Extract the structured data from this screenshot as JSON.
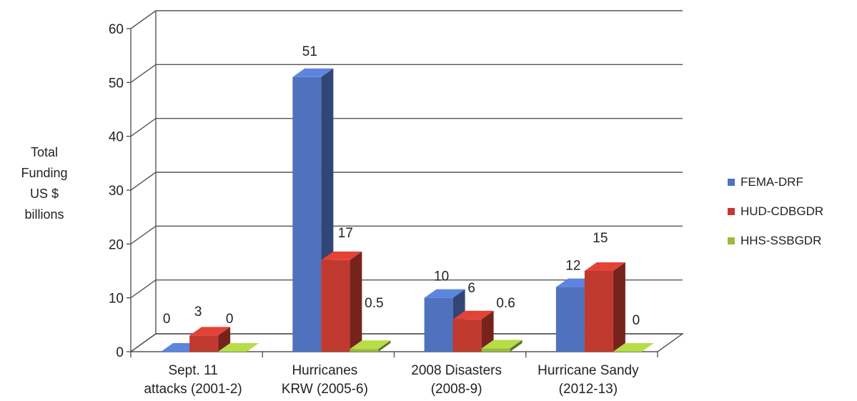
{
  "chart_data": {
    "type": "bar",
    "three_d": true,
    "categories": [
      [
        "Sept. 11",
        "attacks (2001-2)"
      ],
      [
        "Hurricanes",
        "KRW (2005-6)"
      ],
      [
        "2008 Disasters",
        "(2008-9)"
      ],
      [
        "Hurricane Sandy",
        "(2012-13)"
      ]
    ],
    "series": [
      {
        "name": "FEMA-DRF",
        "color": "#4f71be",
        "values": [
          0,
          51,
          10,
          12
        ],
        "labels": [
          "0",
          "51",
          "10",
          "12"
        ]
      },
      {
        "name": "HUD-CDBGDR",
        "color": "#c0392f",
        "values": [
          3,
          17,
          6,
          15
        ],
        "labels": [
          "3",
          "17",
          "6",
          "15"
        ]
      },
      {
        "name": "HHS-SSBGDR",
        "color": "#9bbb3c",
        "values": [
          0,
          0.5,
          0.6,
          0
        ],
        "labels": [
          "0",
          "0.5",
          "0.6",
          "0"
        ]
      }
    ],
    "ylabel": [
      "Total",
      "Funding",
      "US $",
      "billions"
    ],
    "ylim": [
      0,
      60
    ],
    "yticks": [
      0,
      10,
      20,
      30,
      40,
      50,
      60
    ],
    "grid": true,
    "legend_position": "right"
  }
}
